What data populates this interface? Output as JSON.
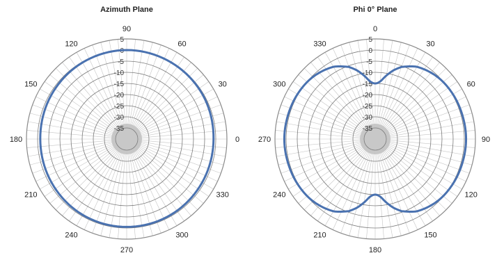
{
  "chart_data": [
    {
      "type": "polar-line",
      "title": "Azimuth Plane",
      "angle_labels": [
        "0",
        "30",
        "60",
        "90",
        "120",
        "150",
        "180",
        "210",
        "240",
        "270",
        "300",
        "330"
      ],
      "angle_zero": "right",
      "angle_direction": "counterclockwise",
      "radial_range": [
        -40,
        5
      ],
      "radial_ticks": [
        5,
        0,
        -5,
        -10,
        -15,
        -20,
        -25,
        -30,
        -35
      ],
      "radial_tick_labels": [
        "5",
        "0",
        "-5",
        "-10",
        "-15",
        "-20",
        "-25",
        "-30",
        "-35"
      ],
      "grid": true,
      "series_color": "#4a72b0",
      "series": [
        {
          "angles": [
            0,
            30,
            60,
            90,
            120,
            150,
            180,
            210,
            240,
            270,
            300,
            330,
            360
          ],
          "values": [
            -1,
            -0.5,
            -0.2,
            0,
            -0.3,
            -0.8,
            -1.2,
            -1,
            -0.6,
            -0.5,
            -0.6,
            -0.9,
            -1
          ]
        }
      ]
    },
    {
      "type": "polar-line",
      "title": "Phi 0° Plane",
      "angle_labels": [
        "0",
        "30",
        "60",
        "90",
        "120",
        "150",
        "180",
        "210",
        "240",
        "270",
        "300",
        "330"
      ],
      "angle_zero": "top",
      "angle_direction": "clockwise",
      "radial_range": [
        -40,
        5
      ],
      "radial_ticks": [
        5,
        0,
        -5,
        -10,
        -15,
        -20,
        -25,
        -30,
        -35
      ],
      "radial_tick_labels": [
        "5",
        "0",
        "-5",
        "-10",
        "-15",
        "-20",
        "-25",
        "-30",
        "-35"
      ],
      "grid": true,
      "series_color": "#4a72b0",
      "series": [
        {
          "angles": [
            0,
            5,
            10,
            15,
            20,
            30,
            45,
            60,
            75,
            90,
            105,
            120,
            135,
            150,
            160,
            165,
            170,
            175,
            180,
            185,
            190,
            195,
            200,
            210,
            225,
            240,
            255,
            270,
            285,
            300,
            315,
            330,
            340,
            345,
            350,
            355,
            360
          ],
          "values": [
            -15,
            -14,
            -11,
            -8,
            -5.5,
            -2.5,
            -0.5,
            0.3,
            0.6,
            0.8,
            0.6,
            0.3,
            -0.5,
            -2.5,
            -5.5,
            -8,
            -11,
            -14,
            -15,
            -14,
            -11,
            -8,
            -5.5,
            -2.5,
            -0.5,
            0.3,
            0.6,
            0.8,
            0.6,
            0.3,
            -0.5,
            -2.5,
            -5.5,
            -8,
            -11,
            -14,
            -15
          ]
        }
      ]
    }
  ]
}
